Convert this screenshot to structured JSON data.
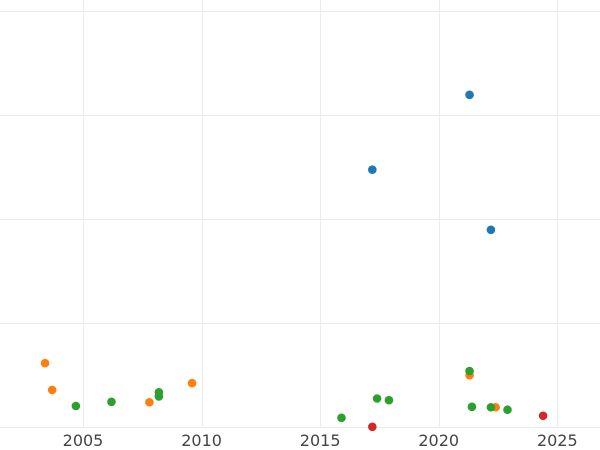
{
  "chart_data": {
    "type": "scatter",
    "title": "",
    "xlabel": "",
    "ylabel": "",
    "xlim": [
      2001.5,
      2026.8
    ],
    "ylim": [
      0,
      2000
    ],
    "x_ticks": [
      2005,
      2010,
      2015,
      2020,
      2025
    ],
    "x_tick_labels": [
      "2005",
      "2010",
      "2015",
      "2020",
      "2025"
    ],
    "y_gridlines": [
      0,
      500,
      1000,
      1500,
      2000
    ],
    "y_tick_labels_visible": false,
    "grid": true,
    "legend": "none",
    "series": [
      {
        "color": "#1f77b4",
        "points": [
          {
            "x": 2017.2,
            "y": 1237
          },
          {
            "x": 2021.3,
            "y": 1597
          },
          {
            "x": 2022.2,
            "y": 948
          }
        ]
      },
      {
        "color": "#ff7f0e",
        "points": [
          {
            "x": 2003.4,
            "y": 307
          },
          {
            "x": 2003.7,
            "y": 178
          },
          {
            "x": 2007.8,
            "y": 119
          },
          {
            "x": 2009.6,
            "y": 211
          },
          {
            "x": 2021.3,
            "y": 249
          },
          {
            "x": 2022.4,
            "y": 95
          }
        ]
      },
      {
        "color": "#2ca02c",
        "points": [
          {
            "x": 2004.7,
            "y": 101
          },
          {
            "x": 2006.2,
            "y": 121
          },
          {
            "x": 2008.2,
            "y": 167
          },
          {
            "x": 2008.2,
            "y": 147
          },
          {
            "x": 2015.9,
            "y": 44
          },
          {
            "x": 2017.4,
            "y": 137
          },
          {
            "x": 2017.9,
            "y": 129
          },
          {
            "x": 2021.3,
            "y": 269
          },
          {
            "x": 2021.4,
            "y": 97
          },
          {
            "x": 2022.2,
            "y": 95
          },
          {
            "x": 2022.9,
            "y": 83
          }
        ]
      },
      {
        "color": "#d62728",
        "points": [
          {
            "x": 2017.2,
            "y": 1
          },
          {
            "x": 2024.4,
            "y": 54
          }
        ]
      }
    ]
  }
}
